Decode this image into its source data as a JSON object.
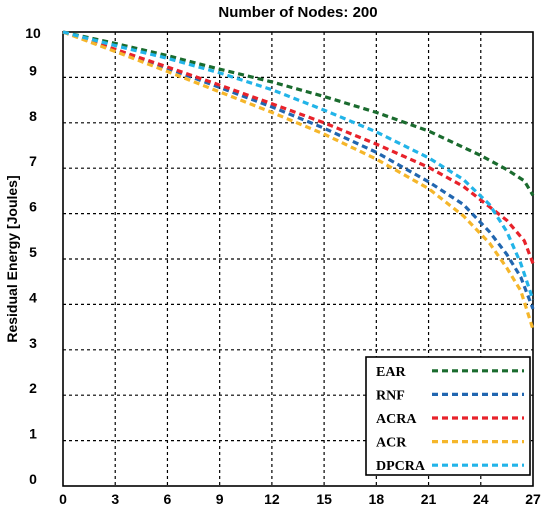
{
  "chart_data": {
    "type": "line",
    "title": "Number of Nodes: 200",
    "xlabel": "",
    "ylabel": "Residual Energy [Joules]",
    "xlim": [
      0,
      27
    ],
    "ylim": [
      0,
      10
    ],
    "xticks": [
      0,
      3,
      6,
      9,
      12,
      15,
      18,
      21,
      24,
      27
    ],
    "yticks": [
      0,
      1,
      2,
      3,
      4,
      5,
      6,
      7,
      8,
      9,
      10
    ],
    "grid": true,
    "legend_position": "bottom-right",
    "series": [
      {
        "name": "EAR",
        "color": "#1a6b2e",
        "points": [
          [
            0,
            10
          ],
          [
            3,
            9.75
          ],
          [
            6,
            9.48
          ],
          [
            9,
            9.18
          ],
          [
            12,
            8.9
          ],
          [
            15,
            8.58
          ],
          [
            18,
            8.23
          ],
          [
            21,
            7.82
          ],
          [
            24,
            7.28
          ],
          [
            25.5,
            6.97
          ],
          [
            26.5,
            6.72
          ],
          [
            27,
            6.4
          ]
        ]
      },
      {
        "name": "RNF",
        "color": "#2166b0",
        "points": [
          [
            0,
            10
          ],
          [
            3,
            9.6
          ],
          [
            6,
            9.2
          ],
          [
            9,
            8.78
          ],
          [
            12,
            8.35
          ],
          [
            15,
            7.88
          ],
          [
            18,
            7.35
          ],
          [
            21,
            6.7
          ],
          [
            23,
            6.2
          ],
          [
            24.5,
            5.6
          ],
          [
            25.5,
            5.1
          ],
          [
            26.3,
            4.6
          ],
          [
            27,
            3.9
          ]
        ]
      },
      {
        "name": "ACRA",
        "color": "#e8222a",
        "points": [
          [
            0,
            10
          ],
          [
            3,
            9.62
          ],
          [
            6,
            9.23
          ],
          [
            9,
            8.83
          ],
          [
            12,
            8.42
          ],
          [
            15,
            8.0
          ],
          [
            18,
            7.53
          ],
          [
            21,
            7.02
          ],
          [
            23,
            6.6
          ],
          [
            24.5,
            6.15
          ],
          [
            25.5,
            5.85
          ],
          [
            26.5,
            5.4
          ],
          [
            27,
            4.9
          ]
        ]
      },
      {
        "name": "ACR",
        "color": "#f5b62a",
        "points": [
          [
            0,
            10
          ],
          [
            3,
            9.57
          ],
          [
            6,
            9.13
          ],
          [
            9,
            8.68
          ],
          [
            12,
            8.23
          ],
          [
            15,
            7.75
          ],
          [
            18,
            7.2
          ],
          [
            21,
            6.55
          ],
          [
            23,
            5.95
          ],
          [
            24.5,
            5.35
          ],
          [
            25.5,
            4.8
          ],
          [
            26.3,
            4.3
          ],
          [
            27,
            3.45
          ]
        ]
      },
      {
        "name": "DPCRA",
        "color": "#22b4e8",
        "points": [
          [
            0,
            10
          ],
          [
            3,
            9.7
          ],
          [
            6,
            9.42
          ],
          [
            9,
            9.1
          ],
          [
            12,
            8.73
          ],
          [
            15,
            8.28
          ],
          [
            18,
            7.8
          ],
          [
            21,
            7.23
          ],
          [
            23,
            6.75
          ],
          [
            24.5,
            6.2
          ],
          [
            25.5,
            5.6
          ],
          [
            26.3,
            4.9
          ],
          [
            27,
            4.1
          ]
        ]
      }
    ]
  }
}
